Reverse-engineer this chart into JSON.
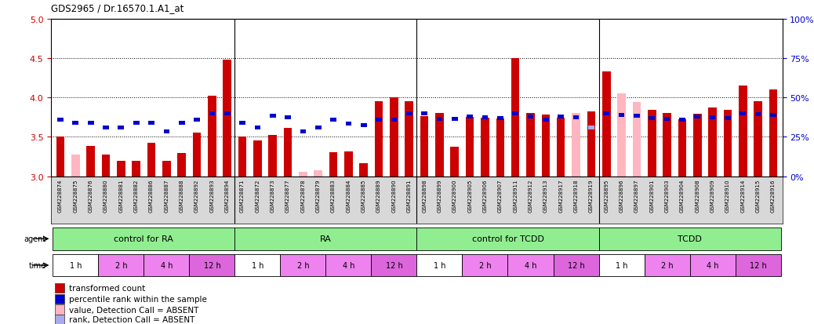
{
  "title": "GDS2965 / Dr.16570.1.A1_at",
  "ylim_left": [
    3.0,
    5.0
  ],
  "ylim_right": [
    0,
    100
  ],
  "yticks_left": [
    3.0,
    3.5,
    4.0,
    4.5,
    5.0
  ],
  "yticks_right": [
    0,
    25,
    50,
    75,
    100
  ],
  "samples": [
    "GSM228874",
    "GSM228875",
    "GSM228876",
    "GSM228880",
    "GSM228881",
    "GSM228882",
    "GSM228886",
    "GSM228887",
    "GSM228888",
    "GSM228892",
    "GSM228893",
    "GSM228894",
    "GSM228871",
    "GSM228872",
    "GSM228873",
    "GSM228877",
    "GSM228878",
    "GSM228879",
    "GSM228883",
    "GSM228884",
    "GSM228885",
    "GSM228889",
    "GSM228890",
    "GSM228891",
    "GSM228898",
    "GSM228899",
    "GSM228900",
    "GSM228905",
    "GSM228906",
    "GSM228907",
    "GSM228911",
    "GSM228912",
    "GSM228913",
    "GSM228917",
    "GSM228918",
    "GSM228919",
    "GSM228895",
    "GSM228896",
    "GSM228897",
    "GSM228901",
    "GSM228903",
    "GSM228904",
    "GSM228908",
    "GSM228909",
    "GSM228910",
    "GSM228914",
    "GSM228915",
    "GSM228916"
  ],
  "bar_values": [
    3.5,
    3.28,
    3.38,
    3.28,
    3.2,
    3.2,
    3.42,
    3.2,
    3.3,
    3.55,
    4.02,
    4.48,
    3.5,
    3.45,
    3.52,
    3.61,
    3.06,
    3.08,
    3.31,
    3.32,
    3.17,
    3.95,
    4.0,
    3.95,
    3.76,
    3.8,
    3.37,
    3.75,
    3.74,
    3.73,
    4.5,
    3.8,
    3.78,
    3.74,
    3.8,
    3.82,
    4.33,
    4.05,
    3.94,
    3.84,
    3.8,
    3.72,
    3.79,
    3.87,
    3.84,
    4.15,
    3.95,
    4.1
  ],
  "rank_values": [
    3.72,
    3.68,
    3.68,
    3.62,
    3.62,
    3.68,
    3.68,
    3.57,
    3.68,
    3.72,
    3.8,
    3.8,
    3.68,
    3.62,
    3.77,
    3.75,
    3.57,
    3.62,
    3.72,
    3.67,
    3.65,
    3.72,
    3.72,
    3.8,
    3.8,
    3.73,
    3.73,
    3.76,
    3.75,
    3.74,
    3.8,
    3.76,
    3.72,
    3.76,
    3.75,
    3.62,
    3.8,
    3.78,
    3.77,
    3.74,
    3.73,
    3.72,
    3.76,
    3.75,
    3.74,
    3.8,
    3.79,
    3.78
  ],
  "absent_bar": [
    false,
    true,
    false,
    false,
    false,
    false,
    false,
    false,
    false,
    false,
    false,
    false,
    false,
    false,
    false,
    false,
    true,
    true,
    false,
    false,
    false,
    false,
    false,
    false,
    false,
    false,
    false,
    false,
    false,
    false,
    false,
    false,
    false,
    false,
    true,
    false,
    false,
    true,
    true,
    false,
    false,
    false,
    false,
    false,
    false,
    false,
    false,
    false
  ],
  "absent_rank": [
    false,
    false,
    false,
    false,
    false,
    false,
    false,
    false,
    false,
    false,
    false,
    false,
    false,
    false,
    false,
    false,
    false,
    false,
    false,
    false,
    false,
    false,
    false,
    false,
    false,
    false,
    false,
    false,
    false,
    false,
    false,
    false,
    false,
    false,
    false,
    true,
    false,
    false,
    false,
    false,
    false,
    false,
    false,
    false,
    false,
    false,
    false,
    false
  ],
  "agent_groups": [
    {
      "start": 0,
      "end": 12,
      "label": "control for RA"
    },
    {
      "start": 12,
      "end": 24,
      "label": "RA"
    },
    {
      "start": 24,
      "end": 36,
      "label": "control for TCDD"
    },
    {
      "start": 36,
      "end": 48,
      "label": "TCDD"
    }
  ],
  "time_points": [
    "1 h",
    "2 h",
    "4 h",
    "12 h"
  ],
  "time_colors": [
    "#ffffff",
    "#ee82ee",
    "#ee82ee",
    "#dd66dd"
  ],
  "agent_color": "#90ee90",
  "bar_color": "#cc0000",
  "bar_absent_color": "#ffb6c1",
  "rank_color": "#0000cc",
  "rank_absent_color": "#aaaaee",
  "bg_color": "#ffffff",
  "xlabels_bg": "#d8d8d8",
  "ytick_color_left": "#cc0000",
  "ytick_color_right": "#0000cc",
  "legend_items": [
    {
      "color": "#cc0000",
      "label": "transformed count"
    },
    {
      "color": "#0000cc",
      "label": "percentile rank within the sample"
    },
    {
      "color": "#ffb6c1",
      "label": "value, Detection Call = ABSENT"
    },
    {
      "color": "#aaaaee",
      "label": "rank, Detection Call = ABSENT"
    }
  ]
}
